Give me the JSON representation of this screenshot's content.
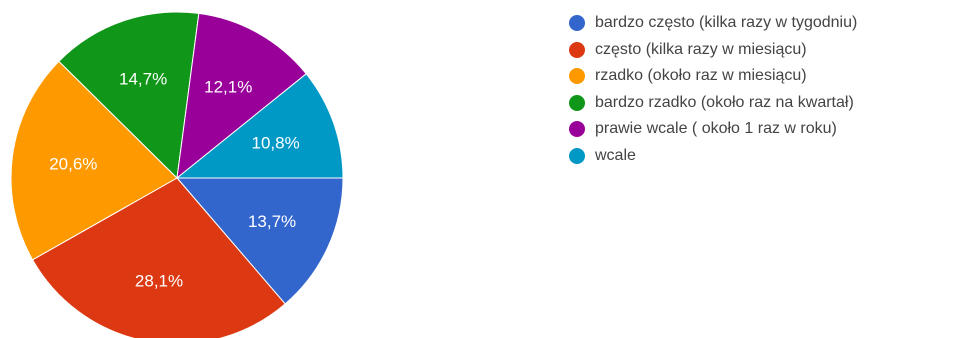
{
  "chart_data": {
    "type": "pie",
    "title": "",
    "legend_position": "right",
    "slices": [
      {
        "label": "bardzo często (kilka razy w tygodniu)",
        "value": 13.7,
        "value_label": "13,7%",
        "color": "#3366cc"
      },
      {
        "label": "często (kilka razy w miesiącu)",
        "value": 28.1,
        "value_label": "28,1%",
        "color": "#dc3912"
      },
      {
        "label": "rzadko (około raz w miesiącu)",
        "value": 20.6,
        "value_label": "20,6%",
        "color": "#ff9900"
      },
      {
        "label": "bardzo rzadko (około raz na kwartał)",
        "value": 14.7,
        "value_label": "14,7%",
        "color": "#109618"
      },
      {
        "label": "prawie wcale ( około 1 raz w roku)",
        "value": 12.1,
        "value_label": "12,1%",
        "color": "#990099"
      },
      {
        "label": "wcale",
        "value": 10.8,
        "value_label": "10,8%",
        "color": "#0099c6"
      }
    ]
  }
}
